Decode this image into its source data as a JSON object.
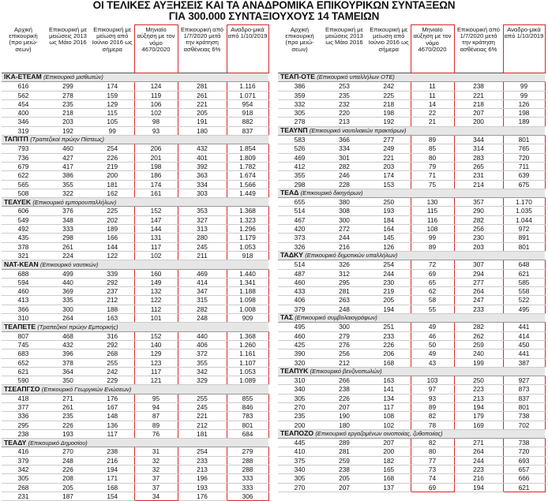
{
  "title": {
    "line1": "ΟΙ ΤΕΛΙΚΕΣ ΑΥΞΗΣΕΙΣ ΚΑΙ ΤΑ ΑΝΑΔΡΟΜΙΚΑ ΕΠΙΚΟΥΡΙΚΩΝ ΣΥΝΤΑΞΕΩΝ",
    "line2": "ΓΙΑ 300.000 ΣΥΝΤΑΞΙΟΥΧΟΥΣ 14 ΤΑΜΕΙΩΝ"
  },
  "headers": [
    "Αρχική επικουρική (προ μειώ-σεων)",
    "Επικουρική με μειώσεις 2013 ως Μάιο 2016",
    "Επικουρική με μείωση από Ιούνιο 2016 ως σήμερα",
    "Μηνιαίο αύξηση με τον νόμο 4670/2020",
    "Επικουρική από 1/7/2020 μετά την κράτηση ασθένειας 6%",
    "Αναδρο-μικά από 1/10/2019"
  ],
  "left": {
    "sections": [
      {
        "name": "ΙΚΑ-ΕΤΕΑΜ",
        "desc": "(Επικουρικό μισθωτών)",
        "rows": [
          [
            "616",
            "299",
            "174",
            "124",
            "281",
            "1.116"
          ],
          [
            "562",
            "278",
            "159",
            "119",
            "261",
            "1.071"
          ],
          [
            "454",
            "235",
            "129",
            "106",
            "221",
            "954"
          ],
          [
            "400",
            "218",
            "115",
            "102",
            "205",
            "918"
          ],
          [
            "346",
            "203",
            "105",
            "98",
            "191",
            "882"
          ],
          [
            "319",
            "192",
            "99",
            "93",
            "180",
            "837"
          ]
        ]
      },
      {
        "name": "ΤΑΠΙΤΠ",
        "desc": "(Τραπεζικοί πρώην Πίστεως)",
        "rows": [
          [
            "793",
            "460",
            "254",
            "206",
            "432",
            "1.854"
          ],
          [
            "736",
            "427",
            "226",
            "201",
            "401",
            "1.809"
          ],
          [
            "679",
            "417",
            "219",
            "198",
            "392",
            "1.782"
          ],
          [
            "622",
            "386",
            "200",
            "186",
            "363",
            "1.674"
          ],
          [
            "565",
            "355",
            "181",
            "174",
            "334",
            "1.566"
          ],
          [
            "508",
            "322",
            "162",
            "161",
            "303",
            "1.449"
          ]
        ]
      },
      {
        "name": "ΤΕΑΥΕΚ",
        "desc": "(Επικουρικό εμπορουπαλλήλων)",
        "rows": [
          [
            "606",
            "376",
            "225",
            "152",
            "353",
            "1.368"
          ],
          [
            "549",
            "348",
            "202",
            "147",
            "327",
            "1.323"
          ],
          [
            "492",
            "333",
            "189",
            "144",
            "313",
            "1.296"
          ],
          [
            "435",
            "298",
            "166",
            "131",
            "280",
            "1.179"
          ],
          [
            "378",
            "261",
            "144",
            "117",
            "245",
            "1.053"
          ],
          [
            "321",
            "224",
            "122",
            "102",
            "211",
            "918"
          ]
        ]
      },
      {
        "name": "ΝΑΤ-ΚΕΑΝ",
        "desc": "(Επικουρικό ναυτικών)",
        "rows": [
          [
            "688",
            "499",
            "339",
            "160",
            "469",
            "1.440"
          ],
          [
            "594",
            "440",
            "292",
            "149",
            "414",
            "1.341"
          ],
          [
            "460",
            "369",
            "237",
            "132",
            "347",
            "1.188"
          ],
          [
            "413",
            "335",
            "212",
            "122",
            "315",
            "1.098"
          ],
          [
            "366",
            "300",
            "188",
            "112",
            "282",
            "1.008"
          ],
          [
            "310",
            "264",
            "163",
            "101",
            "248",
            "909"
          ]
        ]
      },
      {
        "name": "ΤΕΑΠΕΤΕ",
        "desc": "(Τραπεζικοί πρώην Εμπορικής)",
        "rows": [
          [
            "807",
            "468",
            "316",
            "152",
            "440",
            "1.368"
          ],
          [
            "745",
            "432",
            "292",
            "140",
            "406",
            "1.260"
          ],
          [
            "683",
            "396",
            "268",
            "129",
            "372",
            "1.161"
          ],
          [
            "652",
            "378",
            "255",
            "123",
            "355",
            "1.107"
          ],
          [
            "621",
            "364",
            "242",
            "117",
            "342",
            "1.053"
          ],
          [
            "590",
            "350",
            "229",
            "121",
            "329",
            "1.089"
          ]
        ]
      },
      {
        "name": "ΤΣΕΑΠΓΣΟ",
        "desc": "(Επικουρικό Γεωργικών Ενώσεων)",
        "rows": [
          [
            "418",
            "271",
            "176",
            "95",
            "255",
            "855"
          ],
          [
            "377",
            "261",
            "167",
            "94",
            "245",
            "846"
          ],
          [
            "336",
            "235",
            "148",
            "87",
            "221",
            "783"
          ],
          [
            "295",
            "226",
            "136",
            "89",
            "212",
            "801"
          ],
          [
            "238",
            "193",
            "117",
            "76",
            "181",
            "684"
          ]
        ]
      },
      {
        "name": "ΤΕΑΔΥ",
        "desc": "(Επικουρικό Δημοσίου)",
        "rows": [
          [
            "416",
            "270",
            "238",
            "31",
            "254",
            "279"
          ],
          [
            "379",
            "248",
            "216",
            "32",
            "233",
            "288"
          ],
          [
            "342",
            "226",
            "194",
            "32",
            "213",
            "288"
          ],
          [
            "305",
            "208",
            "171",
            "37",
            "196",
            "333"
          ],
          [
            "268",
            "205",
            "168",
            "37",
            "193",
            "333"
          ],
          [
            "231",
            "187",
            "154",
            "34",
            "176",
            "306"
          ]
        ]
      }
    ]
  },
  "right": {
    "sections": [
      {
        "name": "ΤΕΑΠ-ΟΤΕ",
        "desc": "(Επικουρικό υπαλλήλων ΟΤΕ)",
        "rows": [
          [
            "386",
            "253",
            "242",
            "11",
            "238",
            "99"
          ],
          [
            "359",
            "235",
            "225",
            "11",
            "221",
            "99"
          ],
          [
            "332",
            "232",
            "218",
            "14",
            "218",
            "126"
          ],
          [
            "305",
            "220",
            "198",
            "22",
            "207",
            "198"
          ],
          [
            "278",
            "213",
            "192",
            "21",
            "200",
            "189"
          ]
        ]
      },
      {
        "name": "ΤΕΑΥΝΠ",
        "desc": "(Επικουρικό ναυτιλιακών πρακτόρων)",
        "rows": [
          [
            "583",
            "366",
            "277",
            "89",
            "344",
            "801"
          ],
          [
            "526",
            "334",
            "249",
            "85",
            "314",
            "765"
          ],
          [
            "469",
            "301",
            "221",
            "80",
            "283",
            "720"
          ],
          [
            "412",
            "282",
            "203",
            "79",
            "265",
            "711"
          ],
          [
            "355",
            "246",
            "174",
            "71",
            "231",
            "639"
          ],
          [
            "298",
            "228",
            "153",
            "75",
            "214",
            "675"
          ]
        ]
      },
      {
        "name": "ΤΕΑΔ",
        "desc": "(Επικουρικό δικηγόρων)",
        "rows": [
          [
            "655",
            "380",
            "250",
            "130",
            "357",
            "1.170"
          ],
          [
            "514",
            "308",
            "193",
            "115",
            "290",
            "1.035"
          ],
          [
            "467",
            "300",
            "184",
            "116",
            "282",
            "1.044"
          ],
          [
            "420",
            "272",
            "164",
            "108",
            "256",
            "972"
          ],
          [
            "373",
            "244",
            "145",
            "99",
            "230",
            "891"
          ],
          [
            "326",
            "216",
            "126",
            "89",
            "203",
            "801"
          ]
        ]
      },
      {
        "name": "ΤΑΔΚΥ",
        "desc": "(Επικουρικό δημοτικών υπαλλήλων)",
        "rows": [
          [
            "514",
            "326",
            "254",
            "72",
            "307",
            "648"
          ],
          [
            "487",
            "312",
            "244",
            "69",
            "294",
            "621"
          ],
          [
            "460",
            "295",
            "230",
            "65",
            "277",
            "585"
          ],
          [
            "433",
            "281",
            "219",
            "62",
            "264",
            "558"
          ],
          [
            "406",
            "263",
            "205",
            "58",
            "247",
            "522"
          ],
          [
            "379",
            "248",
            "194",
            "55",
            "233",
            "495"
          ]
        ]
      },
      {
        "name": "ΤΑΣ",
        "desc": "(Επικουρικό συμβολαιογράφων)",
        "rows": [
          [
            "495",
            "300",
            "251",
            "49",
            "282",
            "441"
          ],
          [
            "460",
            "279",
            "233",
            "46",
            "262",
            "414"
          ],
          [
            "425",
            "276",
            "226",
            "50",
            "259",
            "450"
          ],
          [
            "390",
            "256",
            "206",
            "49",
            "240",
            "441"
          ],
          [
            "320",
            "212",
            "168",
            "43",
            "199",
            "387"
          ]
        ]
      },
      {
        "name": "ΤΕΑΠΥΚ",
        "desc": "(Επικουρικό βενζινοπωλών)",
        "rows": [
          [
            "310",
            "266",
            "163",
            "103",
            "250",
            "927"
          ],
          [
            "340",
            "238",
            "141",
            "97",
            "223",
            "873"
          ],
          [
            "305",
            "226",
            "134",
            "93",
            "213",
            "837"
          ],
          [
            "270",
            "207",
            "117",
            "89",
            "194",
            "801"
          ],
          [
            "235",
            "190",
            "108",
            "82",
            "179",
            "738"
          ],
          [
            "200",
            "180",
            "102",
            "78",
            "169",
            "702"
          ]
        ]
      },
      {
        "name": "ΤΕΑΠΟΖΟ",
        "desc": "(Επικουρικό εργαζομένων οινοποιίας, ζυθοποιίας)",
        "rows": [
          [
            "445",
            "289",
            "207",
            "82",
            "271",
            "738"
          ],
          [
            "410",
            "281",
            "200",
            "80",
            "264",
            "720"
          ],
          [
            "375",
            "259",
            "182",
            "77",
            "244",
            "693"
          ],
          [
            "340",
            "238",
            "165",
            "73",
            "223",
            "657"
          ],
          [
            "305",
            "205",
            "168",
            "74",
            "216",
            "666"
          ],
          [
            "270",
            "207",
            "137",
            "69",
            "194",
            "621"
          ]
        ]
      }
    ]
  }
}
